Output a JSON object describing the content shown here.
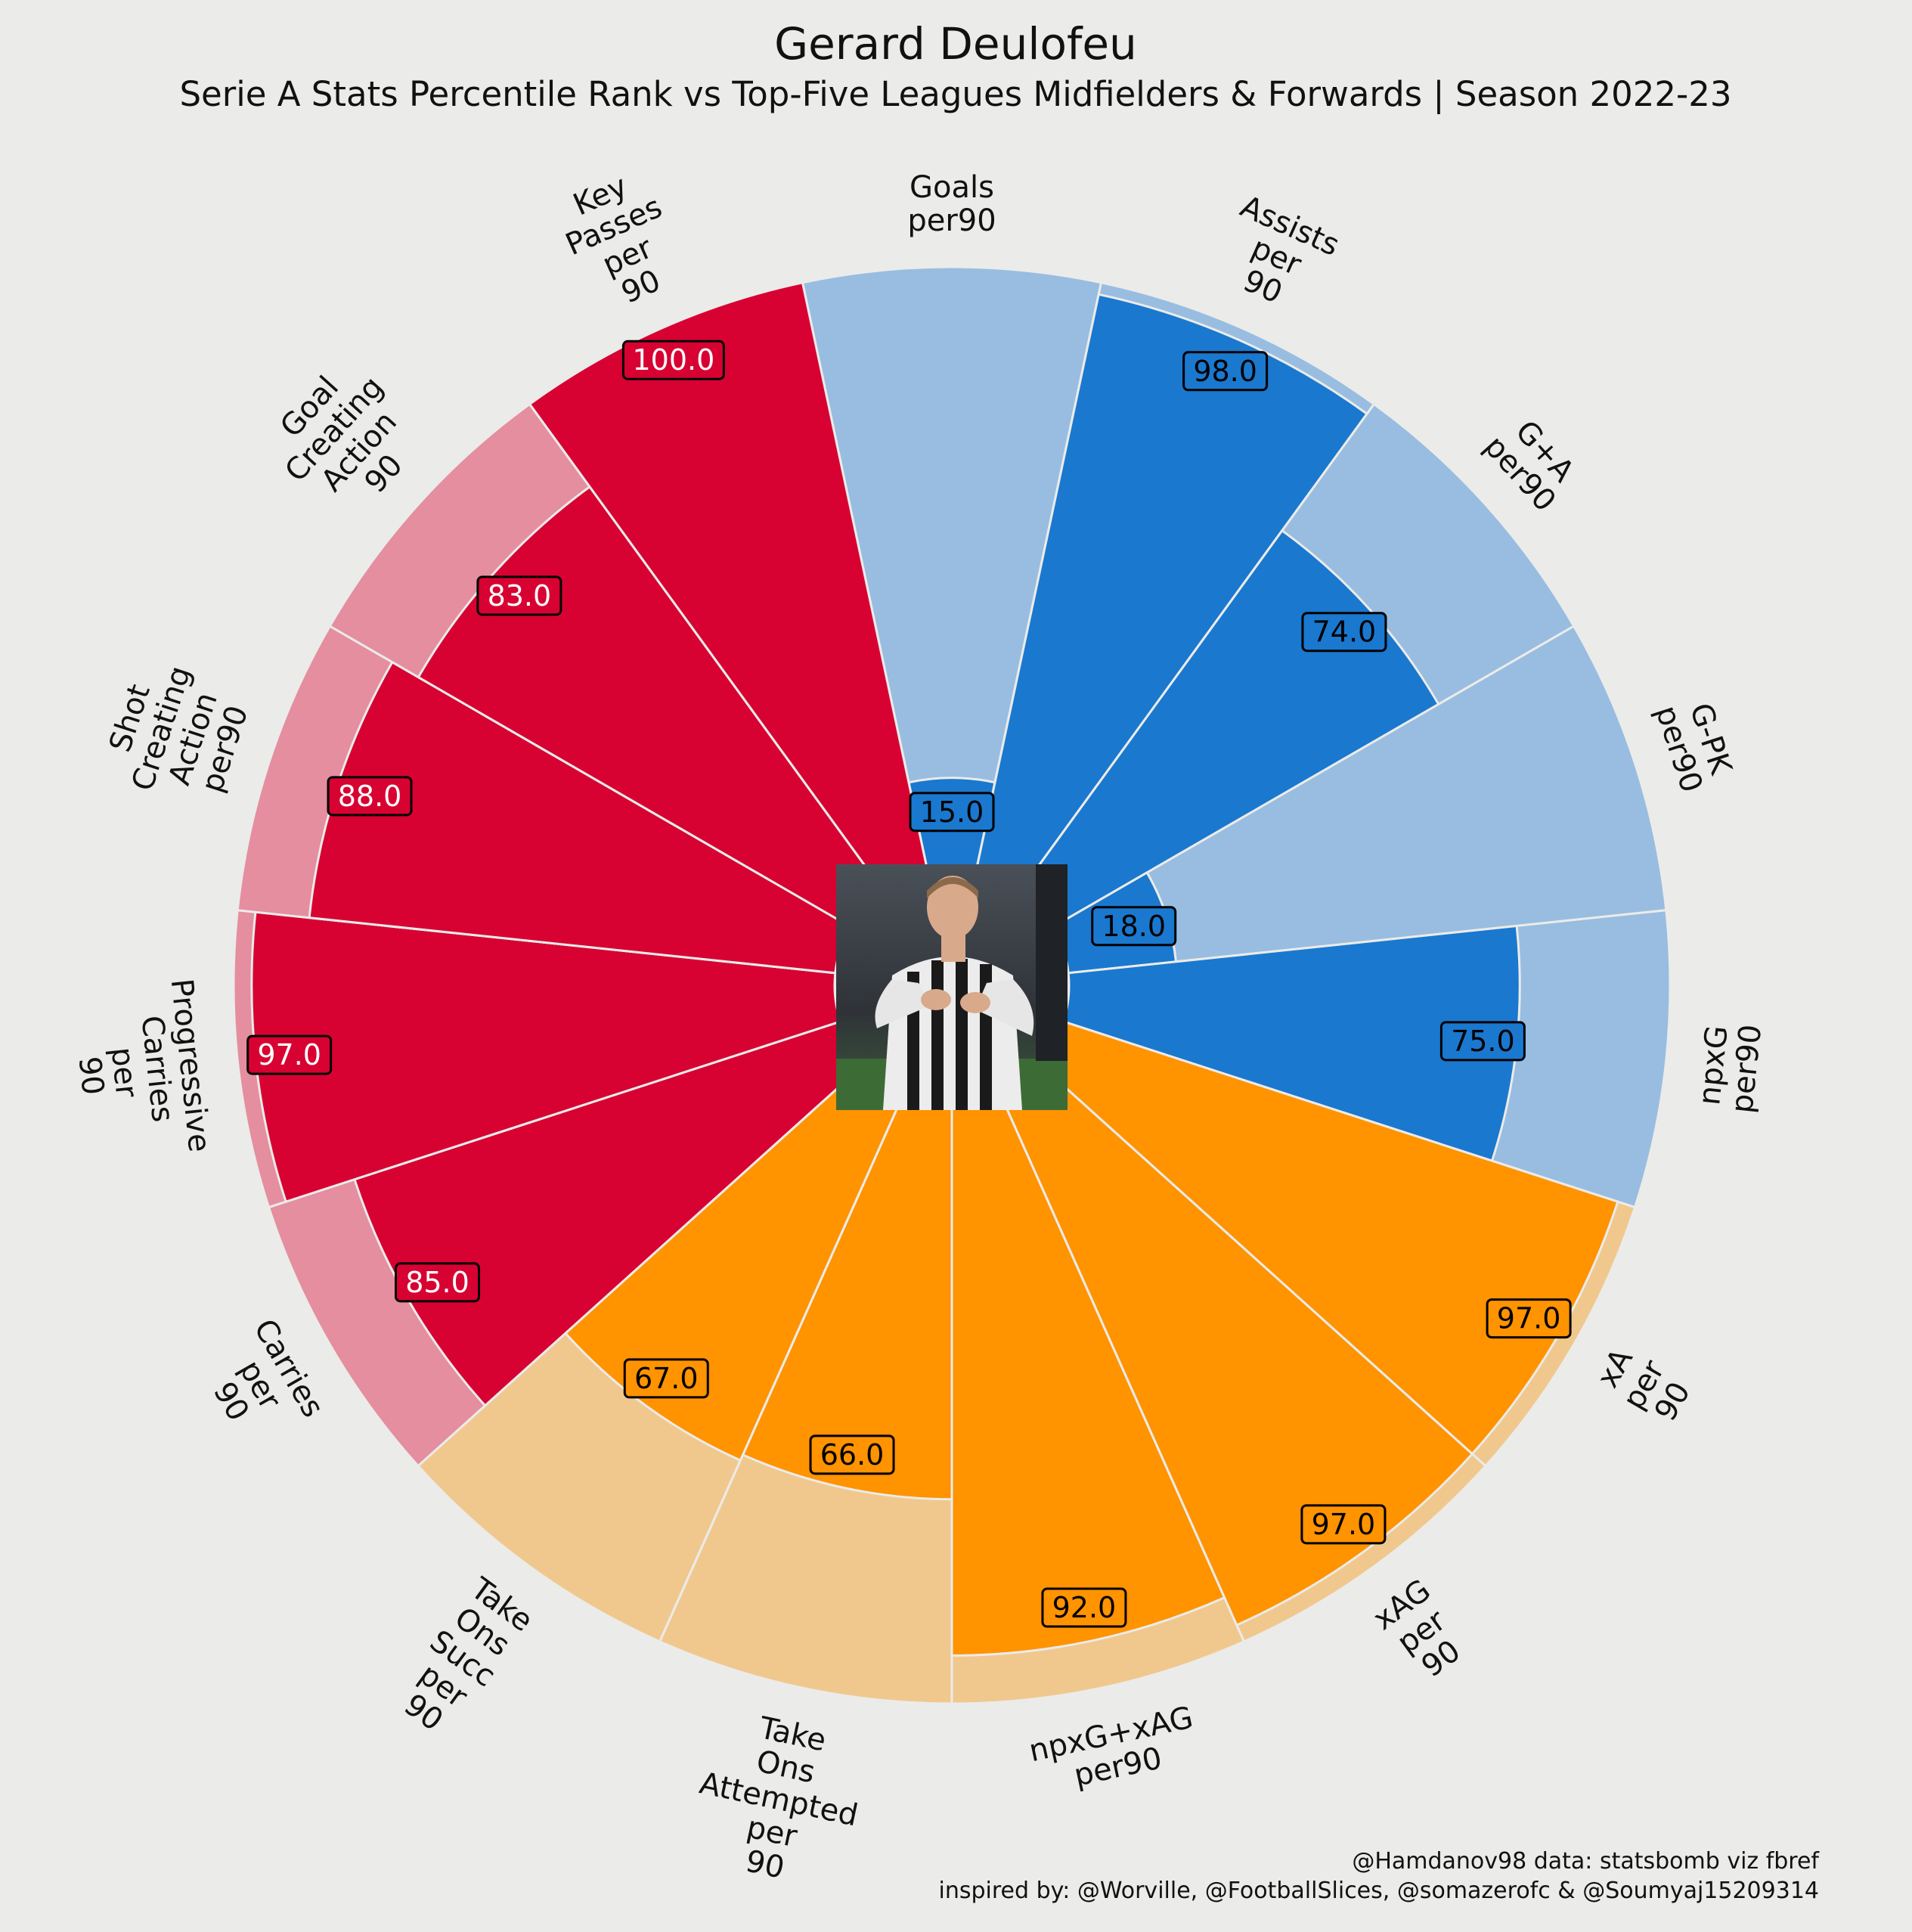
{
  "chart_data": {
    "type": "pizza",
    "title": "Gerard Deulofeu",
    "subtitle": "Serie A Stats Percentile Rank vs Top-Five Leagues Midfielders & Forwards | Season 2022-23",
    "scale": [
      0,
      100
    ],
    "parameters": [
      {
        "label": [
          "Goals",
          "per90"
        ],
        "value": 15.0,
        "group": "attacking"
      },
      {
        "label": [
          "Assists",
          "per",
          "90"
        ],
        "value": 98.0,
        "group": "attacking"
      },
      {
        "label": [
          "G+A",
          "per90"
        ],
        "value": 74.0,
        "group": "attacking"
      },
      {
        "label": [
          "G-PK",
          "per90"
        ],
        "value": 18.0,
        "group": "attacking"
      },
      {
        "label": [
          "npxG",
          "per90"
        ],
        "value": 75.0,
        "group": "attacking"
      },
      {
        "label": [
          "xA",
          "per",
          "90"
        ],
        "value": 97.0,
        "group": "creation"
      },
      {
        "label": [
          "xAG",
          "per",
          "90"
        ],
        "value": 97.0,
        "group": "creation"
      },
      {
        "label": [
          "npxG+xAG",
          "per90"
        ],
        "value": 92.0,
        "group": "creation"
      },
      {
        "label": [
          "Take",
          "Ons",
          "Attempted",
          "per",
          "90"
        ],
        "value": 66.0,
        "group": "creation"
      },
      {
        "label": [
          "Take",
          "Ons",
          "Succ",
          "per",
          "90"
        ],
        "value": 67.0,
        "group": "creation"
      },
      {
        "label": [
          "Carries",
          "per",
          "90"
        ],
        "value": 85.0,
        "group": "possession"
      },
      {
        "label": [
          "Progressive",
          "Carries",
          "per",
          "90"
        ],
        "value": 97.0,
        "group": "possession"
      },
      {
        "label": [
          "Shot",
          "Creating",
          "Action",
          "per90"
        ],
        "value": 88.0,
        "group": "possession"
      },
      {
        "label": [
          "Goal",
          "Creating",
          "Action",
          "90"
        ],
        "value": 83.0,
        "group": "possession"
      },
      {
        "label": [
          "Key",
          "Passes",
          "per",
          "90"
        ],
        "value": 100.0,
        "group": "possession"
      }
    ],
    "groups": {
      "attacking": {
        "slice_color": "#1a78cf",
        "background_color": "#98bde0",
        "value_text_color": "#000000"
      },
      "creation": {
        "slice_color": "#ff9300",
        "background_color": "#f0c88e",
        "value_text_color": "#000000"
      },
      "possession": {
        "slice_color": "#d70232",
        "background_color": "#e48e9f",
        "value_text_color": "#ffffff"
      }
    },
    "background_color": "#ebebe9",
    "credits": [
      "@Hamdanov98 data: statsbomb viz fbref",
      "inspired by: @Worville, @FootballSlices, @somazerofc & @Soumyaj15209314"
    ],
    "center_image": "player-photo"
  }
}
